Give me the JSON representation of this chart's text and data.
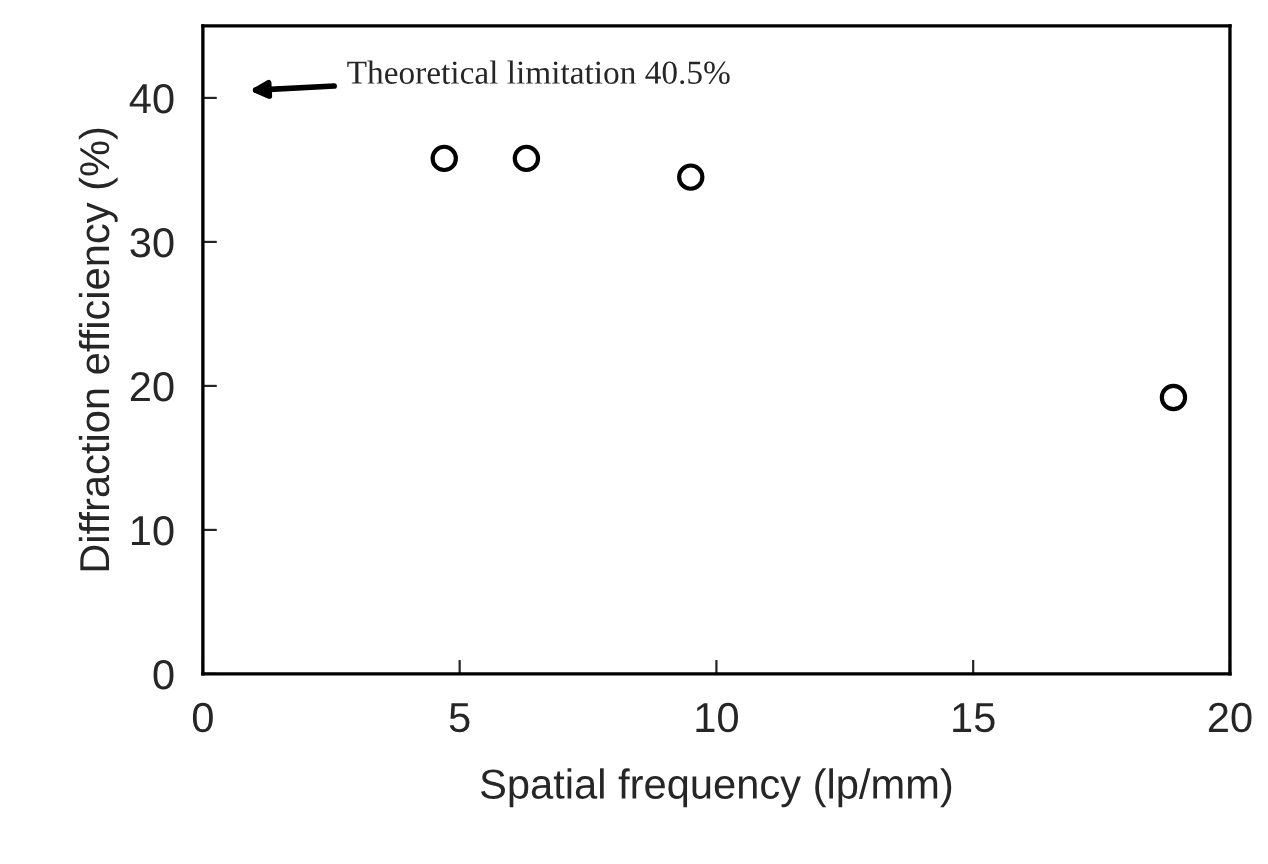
{
  "chart_data": {
    "type": "scatter",
    "xlabel": "Spatial frequency (lp/mm)",
    "ylabel": "Diffraction efficiency (%)",
    "x": [
      4.7,
      6.3,
      9.5,
      18.9
    ],
    "values": [
      35.8,
      35.8,
      34.5,
      19.2
    ],
    "color": "#000000",
    "marker": "circle",
    "xlim": [
      0,
      20
    ],
    "xticks": [
      0,
      5,
      10,
      15,
      20
    ],
    "ylim": [
      0,
      45
    ],
    "yticks": [
      0,
      10,
      20,
      30,
      40
    ],
    "grid": false,
    "legend": false,
    "annotations": [
      "Theoretical limitation 40.5%"
    ]
  }
}
